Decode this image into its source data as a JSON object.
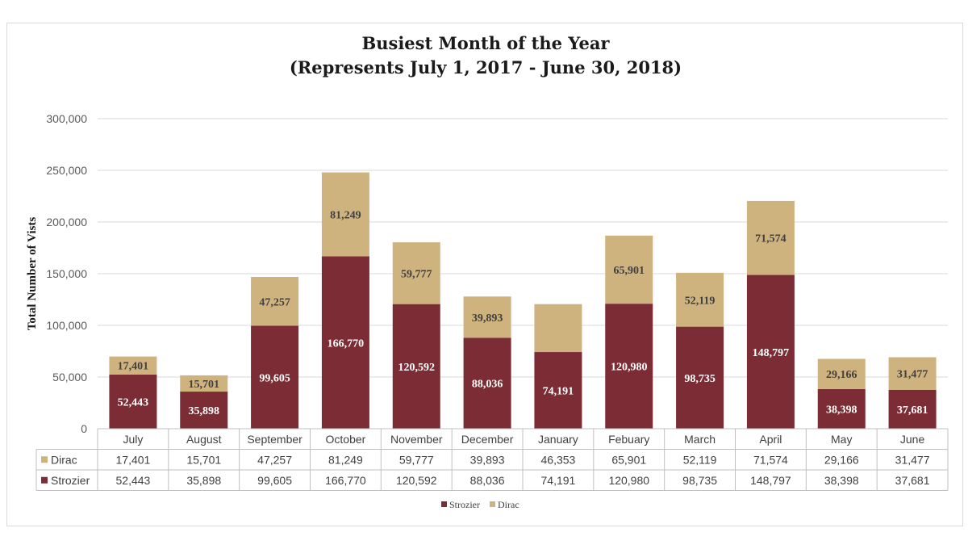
{
  "chart_data": {
    "type": "bar",
    "stacked": true,
    "title": "Busiest Month of the Year",
    "subtitle": "(Represents July 1, 2017 - June 30, 2018)",
    "xlabel": "",
    "ylabel": "Total Number of Vists",
    "ylim": [
      0,
      300000
    ],
    "yticks": [
      "0",
      "50,000",
      "100,000",
      "150,000",
      "200,000",
      "250,000",
      "300,000"
    ],
    "grid": true,
    "categories": [
      "July",
      "August",
      "September",
      "October",
      "November",
      "December",
      "January",
      "Febuary",
      "March",
      "April",
      "May",
      "June"
    ],
    "series": [
      {
        "name": "Strozier",
        "color": "#7b2c35",
        "values": [
          52443,
          35898,
          99605,
          166770,
          120592,
          88036,
          74191,
          120980,
          98735,
          148797,
          38398,
          37681
        ],
        "labels": [
          "52,443",
          "35,898",
          "99,605",
          "166,770",
          "120,592",
          "88,036",
          "74,191",
          "120,980",
          "98,735",
          "148,797",
          "38,398",
          "37,681"
        ],
        "label_color": "#ffffff"
      },
      {
        "name": "Dirac",
        "color": "#cfb37f",
        "values": [
          17401,
          15701,
          47257,
          81249,
          59777,
          39893,
          46353,
          65901,
          52119,
          71574,
          29166,
          31477
        ],
        "labels": [
          "17,401",
          "15,701",
          "47,257",
          "81,249",
          "59,777",
          "39,893",
          "46,353",
          "65,901",
          "52,119",
          "71,574",
          "29,166",
          "31,477"
        ],
        "label_color": "#404040",
        "hidden_bar_labels": [
          6
        ]
      }
    ],
    "legend": {
      "position": "bottom",
      "order": [
        "Strozier",
        "Dirac"
      ]
    },
    "data_table": {
      "row_order": [
        "Dirac",
        "Strozier"
      ]
    }
  }
}
